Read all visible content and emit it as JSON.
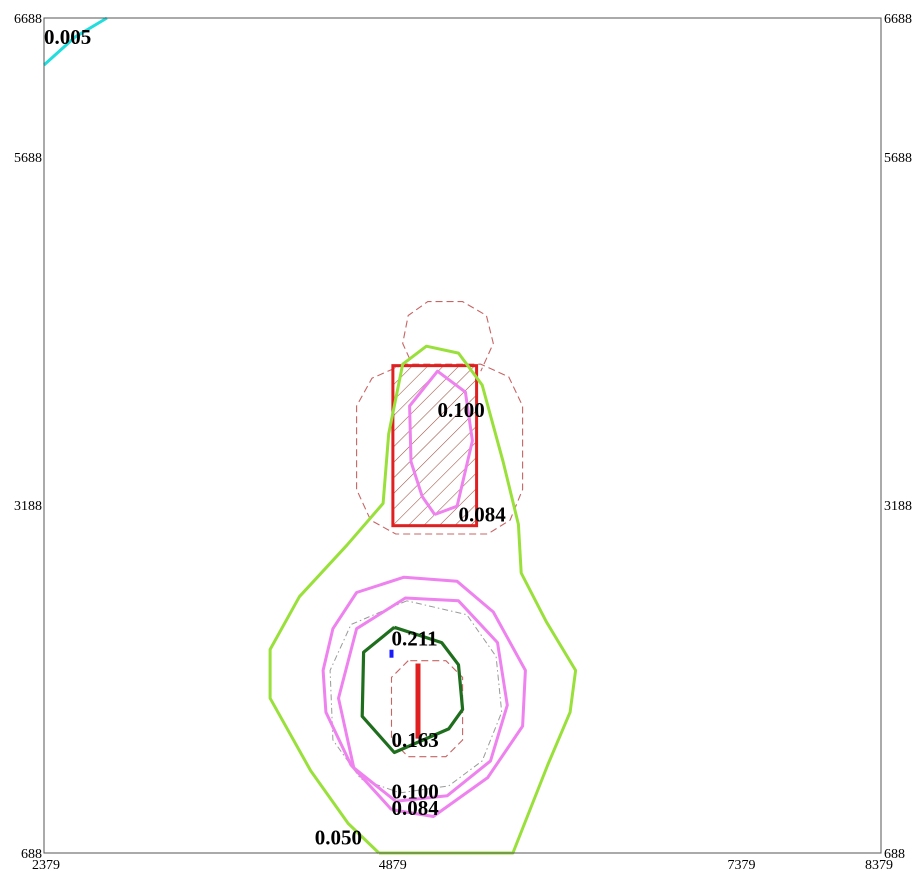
{
  "chart_data": {
    "type": "contour",
    "title": "",
    "xlabel": "",
    "ylabel": "",
    "xlim": [
      2379,
      8379
    ],
    "ylim": [
      688,
      6688
    ],
    "x_ticks": [
      "2379",
      "4879",
      "7379",
      "8379"
    ],
    "y_ticks": [
      "688",
      "3188",
      "5688",
      "6688"
    ],
    "grid": false,
    "colors": {
      "c0050": "#99e03a",
      "c0084": "#ee82ee",
      "c0163": "#1e6e1e",
      "c0005": "#22dddd",
      "source_red": "#e02020",
      "dashed_red": "#c86464",
      "dashdot_gray": "#9a9a9a",
      "blue_mark": "#1a1aff"
    },
    "contours": [
      {
        "label": "0.005",
        "label_at": [
          2379,
          6500
        ],
        "points": [
          [
            2379,
            6350
          ],
          [
            2600,
            6550
          ],
          [
            2830,
            6688
          ]
        ]
      },
      {
        "label": "0.050",
        "label_at": [
          4320,
          750
        ],
        "points": [
          [
            4780,
            688
          ],
          [
            4560,
            900
          ],
          [
            4290,
            1280
          ],
          [
            4000,
            1800
          ],
          [
            4000,
            2150
          ],
          [
            4210,
            2530
          ],
          [
            4550,
            2900
          ],
          [
            4810,
            3200
          ],
          [
            4850,
            3700
          ],
          [
            4950,
            4200
          ],
          [
            5120,
            4330
          ],
          [
            5350,
            4280
          ],
          [
            5520,
            4050
          ],
          [
            5670,
            3500
          ],
          [
            5780,
            3050
          ],
          [
            5800,
            2700
          ],
          [
            5980,
            2350
          ],
          [
            6190,
            2000
          ],
          [
            6150,
            1700
          ],
          [
            5990,
            1320
          ],
          [
            5740,
            688
          ],
          [
            4780,
            688
          ]
        ]
      },
      {
        "label": "0.084",
        "label_at": [
          4870,
          960
        ],
        "points": [
          [
            4870,
            1000
          ],
          [
            4580,
            1320
          ],
          [
            4400,
            1700
          ],
          [
            4380,
            2000
          ],
          [
            4450,
            2300
          ],
          [
            4620,
            2560
          ],
          [
            4960,
            2670
          ],
          [
            5340,
            2640
          ],
          [
            5600,
            2420
          ],
          [
            5830,
            2000
          ],
          [
            5810,
            1600
          ],
          [
            5560,
            1230
          ],
          [
            5170,
            950
          ],
          [
            4870,
            1000
          ]
        ]
      },
      {
        "label": "0.084",
        "label_at": [
          5350,
          3070
        ],
        "points": [
          [
            5180,
            3120
          ],
          [
            5340,
            3180
          ],
          [
            5450,
            3650
          ],
          [
            5400,
            4000
          ],
          [
            5200,
            4150
          ],
          [
            5000,
            3900
          ],
          [
            5010,
            3500
          ],
          [
            5090,
            3250
          ],
          [
            5180,
            3120
          ]
        ]
      },
      {
        "label": "0.100",
        "label_at": [
          4870,
          1080
        ],
        "points": [
          [
            4900,
            1060
          ],
          [
            4600,
            1300
          ],
          [
            4490,
            1800
          ],
          [
            4620,
            2300
          ],
          [
            4970,
            2520
          ],
          [
            5350,
            2500
          ],
          [
            5630,
            2200
          ],
          [
            5700,
            1750
          ],
          [
            5580,
            1350
          ],
          [
            5270,
            1100
          ],
          [
            4900,
            1060
          ]
        ]
      },
      {
        "label": "0.100",
        "label_at": [
          5200,
          3820
        ],
        "points": [
          [
            5200,
            3820
          ],
          [
            5200,
            3820
          ]
        ]
      },
      {
        "label": "0.163",
        "label_at": [
          4870,
          1450
        ],
        "points": [
          [
            4890,
            2310
          ],
          [
            4670,
            2130
          ],
          [
            4660,
            1670
          ],
          [
            4890,
            1410
          ],
          [
            5280,
            1580
          ],
          [
            5380,
            1720
          ],
          [
            5350,
            2040
          ],
          [
            5230,
            2200
          ],
          [
            4890,
            2310
          ]
        ]
      },
      {
        "label": "0.211",
        "label_at": [
          4870,
          2180
        ],
        "points": [
          [
            4870,
            2120
          ],
          [
            4870,
            2120
          ]
        ]
      }
    ],
    "dashed_red": [
      [
        [
          5000,
          4240
        ],
        [
          4950,
          4350
        ],
        [
          4990,
          4550
        ],
        [
          5130,
          4650
        ],
        [
          5380,
          4650
        ],
        [
          5550,
          4550
        ],
        [
          5600,
          4350
        ],
        [
          5510,
          4150
        ]
      ],
      [
        [
          4960,
          4200
        ],
        [
          4730,
          4100
        ],
        [
          4620,
          3900
        ],
        [
          4620,
          3300
        ],
        [
          4720,
          3080
        ],
        [
          4900,
          2980
        ],
        [
          5560,
          2980
        ],
        [
          5720,
          3080
        ],
        [
          5810,
          3300
        ],
        [
          5810,
          3900
        ],
        [
          5710,
          4110
        ],
        [
          5510,
          4200
        ],
        [
          4960,
          4200
        ]
      ],
      [
        [
          4990,
          2070
        ],
        [
          4870,
          1950
        ],
        [
          4870,
          1500
        ],
        [
          4990,
          1380
        ],
        [
          5260,
          1380
        ],
        [
          5380,
          1500
        ],
        [
          5380,
          1950
        ],
        [
          5260,
          2070
        ],
        [
          4990,
          2070
        ]
      ]
    ],
    "dashdot_gray": [
      [
        4980,
        2500
      ],
      [
        4580,
        2330
      ],
      [
        4430,
        2000
      ],
      [
        4450,
        1500
      ],
      [
        4650,
        1220
      ],
      [
        4930,
        1120
      ],
      [
        5280,
        1170
      ],
      [
        5520,
        1350
      ],
      [
        5660,
        1700
      ],
      [
        5620,
        2100
      ],
      [
        5410,
        2400
      ],
      [
        4980,
        2500
      ]
    ],
    "source_rect": {
      "x0": 4880,
      "x1": 5480,
      "y0": 3040,
      "y1": 4190
    },
    "source_line": [
      [
        5060,
        1510
      ],
      [
        5060,
        2050
      ]
    ],
    "blue_mark": [
      4870,
      2120
    ]
  }
}
